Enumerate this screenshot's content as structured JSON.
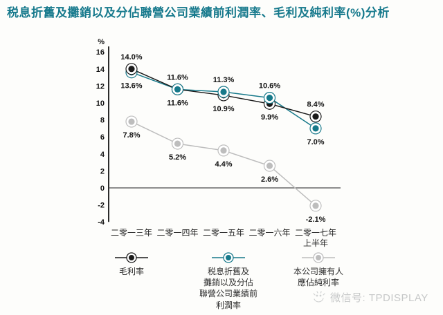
{
  "chart_data": {
    "type": "line",
    "title": "税息折舊及攤銷以及分佔聯營公司業績前利潤率、毛利及純利率(%)分析",
    "title_color": "#16798c",
    "unit_label": "%",
    "categories": [
      "二零一三年",
      "二零一四年",
      "二零一五年",
      "二零一六年",
      "二零一七年\n上半年"
    ],
    "series": [
      {
        "name": "毛利率",
        "legend_label": "毛利率",
        "color": "#1a1a1a",
        "values": [
          14.0,
          11.6,
          10.9,
          9.9,
          8.4
        ],
        "point_labels": [
          "14.0%",
          "11.6%",
          "10.9%",
          "9.9%",
          "8.4%"
        ]
      },
      {
        "name": "税息折舊及攤銷以及分佔聯營公司業績前利潤率",
        "legend_label": "税息折舊及\n攤銷以及分佔\n聯營公司業績前\n利潤率",
        "color": "#17798a",
        "values": [
          13.6,
          11.6,
          11.3,
          10.6,
          7.0
        ],
        "point_labels": [
          "13.6%",
          "11.6%",
          "11.3%",
          "10.6%",
          "7.0%"
        ]
      },
      {
        "name": "本公司擁有人應佔純利率",
        "legend_label": "本公司擁有人\n應佔純利率",
        "color": "#bdbdbd",
        "values": [
          7.8,
          5.2,
          4.4,
          2.6,
          -2.1
        ],
        "point_labels": [
          "7.8%",
          "5.2%",
          "4.4%",
          "2.6%",
          "-2.1%"
        ]
      }
    ],
    "y_ticks": [
      16,
      14,
      12,
      10,
      8,
      6,
      4,
      2,
      0,
      -2,
      -4
    ],
    "ylim": [
      -4,
      16
    ],
    "grid": false,
    "legend_position": "bottom",
    "label_color": "#111111",
    "axis_color": "#2b2b2b"
  },
  "watermark": {
    "label": "微信号: TPDISPLAY"
  }
}
